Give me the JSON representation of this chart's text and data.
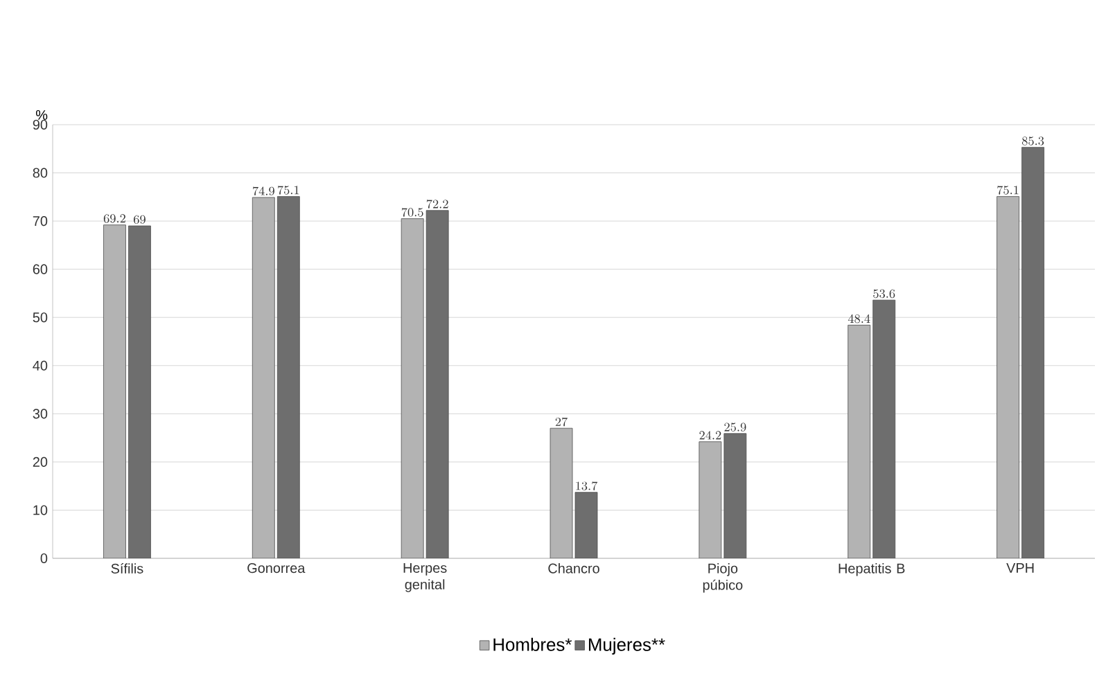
{
  "chart_data": {
    "type": "bar",
    "ylabel": "%",
    "categories": [
      "Sífilis",
      "Gonorrea",
      "Herpes genital",
      "Chancro",
      "Piojo púbico",
      "Hepatitis B",
      "VPH"
    ],
    "series": [
      {
        "name": "Hombres*",
        "color": "#b3b3b3",
        "values": [
          69.2,
          74.9,
          70.5,
          27,
          24.2,
          48.4,
          75.1
        ]
      },
      {
        "name": "Mujeres**",
        "color": "#6e6e6e",
        "values": [
          69,
          75.1,
          72.2,
          13.7,
          25.9,
          53.6,
          85.3
        ]
      }
    ],
    "ylim": [
      0,
      90
    ],
    "yticks": [
      0,
      10,
      20,
      30,
      40,
      50,
      60,
      70,
      80,
      90
    ],
    "grid": "y",
    "legend": "bottom",
    "data_labels": true
  }
}
